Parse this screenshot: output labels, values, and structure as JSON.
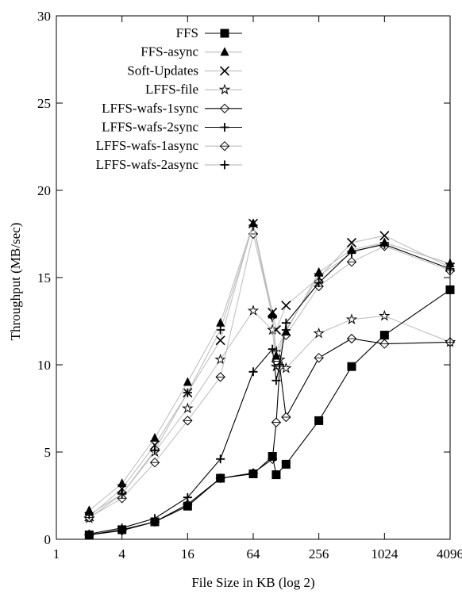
{
  "chart_data": {
    "type": "line",
    "title": "",
    "xlabel": "File Size in KB (log 2)",
    "ylabel": "Throughput (MB/sec)",
    "x_scale": "log2",
    "xlim": [
      1,
      4096
    ],
    "ylim": [
      0,
      30
    ],
    "x_ticks": [
      1,
      4,
      16,
      64,
      256,
      1024,
      4096
    ],
    "x_tick_labels": [
      "1",
      "4",
      "16",
      "64",
      "256",
      "1024",
      "4096"
    ],
    "y_ticks": [
      0,
      5,
      10,
      15,
      20,
      25,
      30
    ],
    "y_tick_labels": [
      "0",
      "5",
      "10",
      "15",
      "20",
      "25",
      "30"
    ],
    "grid": false,
    "legend_position": "top-left",
    "x": [
      2,
      4,
      8,
      16,
      32,
      64,
      96,
      104,
      112,
      128,
      256,
      512,
      1024,
      4096
    ],
    "series": [
      {
        "name": "FFS",
        "marker": "filled-square",
        "line_color": "#000000",
        "values": [
          0.25,
          0.55,
          1.0,
          1.9,
          3.5,
          3.75,
          4.75,
          3.7,
          null,
          4.3,
          6.8,
          9.9,
          11.7,
          14.3
        ]
      },
      {
        "name": "FFS-async",
        "marker": "filled-triangle",
        "line_color": "#bbbbbb",
        "values": [
          1.65,
          3.2,
          5.8,
          9.0,
          12.4,
          18.1,
          12.9,
          10.5,
          null,
          11.9,
          15.3,
          16.6,
          17.0,
          15.8
        ]
      },
      {
        "name": "Soft-Updates",
        "marker": "x",
        "line_color": "#bbbbbb",
        "values": [
          1.3,
          2.9,
          5.4,
          8.4,
          11.4,
          18.1,
          13.0,
          12.0,
          null,
          13.4,
          15.0,
          17.0,
          17.4,
          15.6
        ]
      },
      {
        "name": "LFFS-file",
        "marker": "star",
        "line_color": "#bbbbbb",
        "values": [
          1.2,
          2.6,
          5.0,
          7.5,
          10.3,
          13.1,
          12.0,
          9.9,
          10.3,
          9.8,
          11.8,
          12.6,
          12.8,
          11.3
        ]
      },
      {
        "name": "LFFS-wafs-1sync",
        "marker": "diamond",
        "line_color": "#000000",
        "values": [
          0.25,
          0.5,
          1.0,
          2.0,
          3.5,
          3.8,
          4.6,
          6.7,
          9.9,
          7.0,
          10.4,
          11.5,
          11.2,
          11.3
        ]
      },
      {
        "name": "LFFS-wafs-2sync",
        "marker": "plus",
        "line_color": "#000000",
        "values": [
          0.3,
          0.65,
          1.2,
          2.4,
          4.6,
          9.6,
          10.9,
          9.1,
          10.0,
          12.4,
          14.7,
          16.5,
          16.9,
          15.5
        ]
      },
      {
        "name": "LFFS-wafs-1async",
        "marker": "diamond",
        "line_color": "#bbbbbb",
        "values": [
          1.25,
          2.35,
          4.4,
          6.8,
          9.3,
          17.5,
          12.8,
          10.2,
          null,
          11.7,
          14.5,
          15.9,
          16.8,
          15.4
        ]
      },
      {
        "name": "LFFS-wafs-2async",
        "marker": "plus",
        "line_color": "#bbbbbb",
        "values": [
          1.4,
          2.6,
          5.1,
          8.4,
          12.0,
          18.0,
          12.7,
          10.8,
          null,
          12.0,
          15.1,
          16.4,
          17.0,
          15.8
        ]
      }
    ]
  }
}
